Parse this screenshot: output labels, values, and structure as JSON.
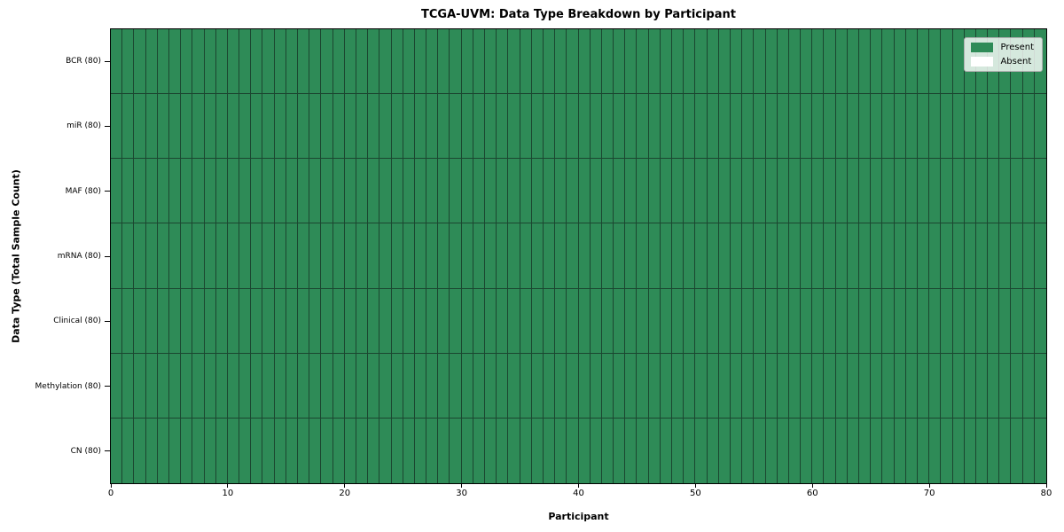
{
  "chart_data": {
    "type": "heatmap",
    "title": "TCGA-UVM: Data Type Breakdown by Participant",
    "xlabel": "Participant",
    "ylabel": "Data Type (Total Sample Count)",
    "x_range": [
      0,
      80
    ],
    "x_ticks": [
      0,
      10,
      20,
      30,
      40,
      50,
      60,
      70,
      80
    ],
    "n_participants": 80,
    "rows": [
      {
        "label": "BCR (80)",
        "present_count": 80
      },
      {
        "label": "miR (80)",
        "present_count": 80
      },
      {
        "label": "MAF (80)",
        "present_count": 80
      },
      {
        "label": "mRNA (80)",
        "present_count": 80
      },
      {
        "label": "Clinical (80)",
        "present_count": 80
      },
      {
        "label": "Methylation (80)",
        "present_count": 80
      },
      {
        "label": "CN (80)",
        "present_count": 80
      }
    ],
    "legend": {
      "position": "upper-right",
      "entries": [
        {
          "label": "Present",
          "color": "#2e8b57"
        },
        {
          "label": "Absent",
          "color": "#ffffff"
        }
      ]
    },
    "colors": {
      "present": "#2e8b57",
      "absent": "#ffffff",
      "cell_border": "#1b4630",
      "spine": "#000000"
    },
    "grid": false
  }
}
